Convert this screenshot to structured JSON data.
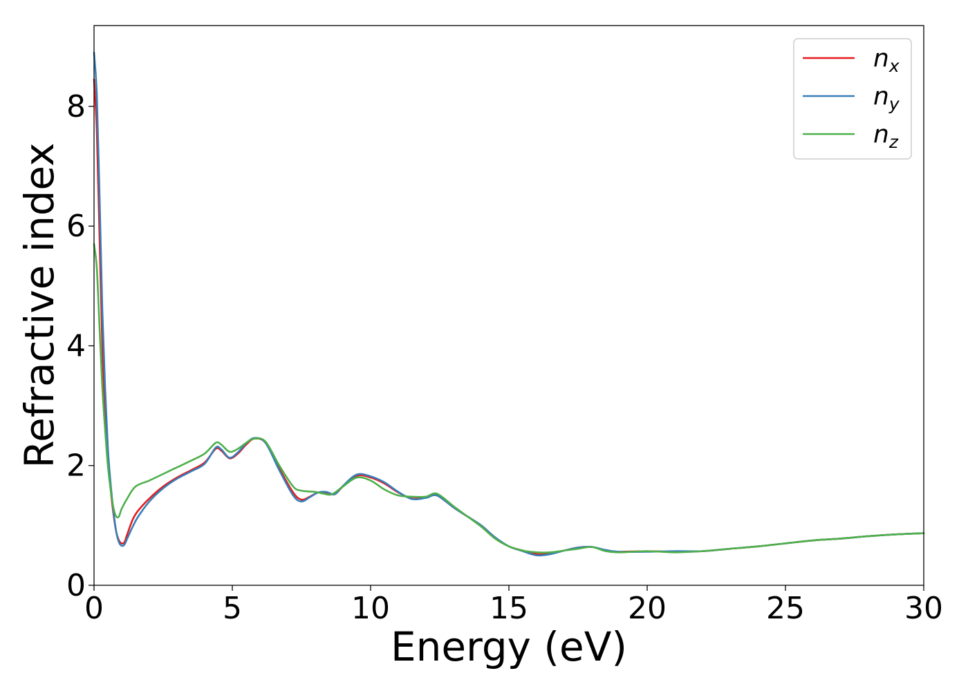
{
  "chart_data": {
    "type": "line",
    "title": "",
    "xlabel": "Energy (eV)",
    "ylabel": "Refractive index",
    "xlim": [
      0,
      30
    ],
    "ylim": [
      0,
      9.35
    ],
    "xticks": [
      0,
      5,
      10,
      15,
      20,
      25,
      30
    ],
    "yticks": [
      0,
      2,
      4,
      6,
      8
    ],
    "grid": false,
    "legend_position": "top-right",
    "series": [
      {
        "name": "n",
        "subscript": "x",
        "color": "#e41a1c",
        "points": [
          [
            0,
            8.45
          ],
          [
            0.1,
            7.6
          ],
          [
            0.2,
            5.8
          ],
          [
            0.3,
            4.0
          ],
          [
            0.4,
            2.9
          ],
          [
            0.5,
            2.1
          ],
          [
            0.6,
            1.6
          ],
          [
            0.7,
            1.2
          ],
          [
            0.8,
            0.9
          ],
          [
            0.9,
            0.75
          ],
          [
            1.0,
            0.7
          ],
          [
            1.1,
            0.72
          ],
          [
            1.2,
            0.85
          ],
          [
            1.4,
            1.1
          ],
          [
            1.6,
            1.25
          ],
          [
            2.0,
            1.45
          ],
          [
            2.5,
            1.65
          ],
          [
            3.0,
            1.8
          ],
          [
            3.5,
            1.92
          ],
          [
            4.0,
            2.05
          ],
          [
            4.4,
            2.28
          ],
          [
            4.6,
            2.25
          ],
          [
            4.9,
            2.12
          ],
          [
            5.2,
            2.2
          ],
          [
            5.5,
            2.35
          ],
          [
            5.8,
            2.45
          ],
          [
            6.2,
            2.38
          ],
          [
            6.7,
            1.95
          ],
          [
            7.2,
            1.55
          ],
          [
            7.5,
            1.43
          ],
          [
            7.8,
            1.48
          ],
          [
            8.1,
            1.55
          ],
          [
            8.4,
            1.55
          ],
          [
            8.7,
            1.52
          ],
          [
            9.0,
            1.65
          ],
          [
            9.5,
            1.83
          ],
          [
            10.0,
            1.8
          ],
          [
            10.5,
            1.7
          ],
          [
            11.0,
            1.55
          ],
          [
            11.5,
            1.45
          ],
          [
            12.0,
            1.47
          ],
          [
            12.4,
            1.5
          ],
          [
            13.0,
            1.3
          ],
          [
            13.5,
            1.15
          ],
          [
            14.0,
            1.0
          ],
          [
            14.5,
            0.8
          ],
          [
            15.0,
            0.65
          ],
          [
            15.5,
            0.58
          ],
          [
            16.0,
            0.52
          ],
          [
            16.5,
            0.53
          ],
          [
            17.0,
            0.58
          ],
          [
            17.5,
            0.63
          ],
          [
            18.0,
            0.64
          ],
          [
            18.5,
            0.58
          ],
          [
            19.0,
            0.56
          ],
          [
            20.0,
            0.57
          ],
          [
            21.0,
            0.56
          ],
          [
            22.0,
            0.57
          ],
          [
            23.0,
            0.61
          ],
          [
            24.0,
            0.65
          ],
          [
            25.0,
            0.7
          ],
          [
            26.0,
            0.75
          ],
          [
            27.0,
            0.78
          ],
          [
            28.0,
            0.82
          ],
          [
            29.0,
            0.85
          ],
          [
            30.0,
            0.87
          ]
        ]
      },
      {
        "name": "n",
        "subscript": "y",
        "color": "#377eb8",
        "points": [
          [
            0,
            8.9
          ],
          [
            0.1,
            8.2
          ],
          [
            0.2,
            6.5
          ],
          [
            0.3,
            4.6
          ],
          [
            0.4,
            3.3
          ],
          [
            0.5,
            2.3
          ],
          [
            0.6,
            1.7
          ],
          [
            0.7,
            1.25
          ],
          [
            0.8,
            0.9
          ],
          [
            0.9,
            0.72
          ],
          [
            1.0,
            0.66
          ],
          [
            1.1,
            0.68
          ],
          [
            1.2,
            0.78
          ],
          [
            1.4,
            0.98
          ],
          [
            1.6,
            1.15
          ],
          [
            2.0,
            1.4
          ],
          [
            2.5,
            1.62
          ],
          [
            3.0,
            1.78
          ],
          [
            3.5,
            1.9
          ],
          [
            4.0,
            2.03
          ],
          [
            4.4,
            2.3
          ],
          [
            4.6,
            2.27
          ],
          [
            4.9,
            2.13
          ],
          [
            5.2,
            2.22
          ],
          [
            5.5,
            2.37
          ],
          [
            5.8,
            2.46
          ],
          [
            6.2,
            2.38
          ],
          [
            6.7,
            1.92
          ],
          [
            7.2,
            1.5
          ],
          [
            7.5,
            1.4
          ],
          [
            7.8,
            1.47
          ],
          [
            8.1,
            1.55
          ],
          [
            8.4,
            1.56
          ],
          [
            8.7,
            1.52
          ],
          [
            9.0,
            1.66
          ],
          [
            9.5,
            1.85
          ],
          [
            10.0,
            1.82
          ],
          [
            10.5,
            1.72
          ],
          [
            11.0,
            1.56
          ],
          [
            11.5,
            1.44
          ],
          [
            12.0,
            1.46
          ],
          [
            12.4,
            1.5
          ],
          [
            13.0,
            1.3
          ],
          [
            13.5,
            1.15
          ],
          [
            14.0,
            1.0
          ],
          [
            14.5,
            0.8
          ],
          [
            15.0,
            0.65
          ],
          [
            15.5,
            0.57
          ],
          [
            16.0,
            0.5
          ],
          [
            16.5,
            0.52
          ],
          [
            17.0,
            0.58
          ],
          [
            17.5,
            0.63
          ],
          [
            18.0,
            0.64
          ],
          [
            18.5,
            0.59
          ],
          [
            19.0,
            0.56
          ],
          [
            20.0,
            0.56
          ],
          [
            21.0,
            0.57
          ],
          [
            22.0,
            0.57
          ],
          [
            23.0,
            0.61
          ],
          [
            24.0,
            0.65
          ],
          [
            25.0,
            0.7
          ],
          [
            26.0,
            0.75
          ],
          [
            27.0,
            0.78
          ],
          [
            28.0,
            0.82
          ],
          [
            29.0,
            0.85
          ],
          [
            30.0,
            0.87
          ]
        ]
      },
      {
        "name": "n",
        "subscript": "z",
        "color": "#4daf4a",
        "points": [
          [
            0,
            5.7
          ],
          [
            0.1,
            5.3
          ],
          [
            0.2,
            4.3
          ],
          [
            0.3,
            3.3
          ],
          [
            0.4,
            2.6
          ],
          [
            0.5,
            2.0
          ],
          [
            0.6,
            1.6
          ],
          [
            0.7,
            1.3
          ],
          [
            0.8,
            1.15
          ],
          [
            0.9,
            1.15
          ],
          [
            1.0,
            1.28
          ],
          [
            1.2,
            1.45
          ],
          [
            1.5,
            1.65
          ],
          [
            2.0,
            1.75
          ],
          [
            2.5,
            1.86
          ],
          [
            3.0,
            1.97
          ],
          [
            3.5,
            2.08
          ],
          [
            4.0,
            2.2
          ],
          [
            4.4,
            2.38
          ],
          [
            4.6,
            2.35
          ],
          [
            4.9,
            2.23
          ],
          [
            5.2,
            2.28
          ],
          [
            5.5,
            2.38
          ],
          [
            5.8,
            2.45
          ],
          [
            6.2,
            2.4
          ],
          [
            6.7,
            2.0
          ],
          [
            7.2,
            1.65
          ],
          [
            7.5,
            1.58
          ],
          [
            8.0,
            1.56
          ],
          [
            8.3,
            1.53
          ],
          [
            8.6,
            1.52
          ],
          [
            9.0,
            1.65
          ],
          [
            9.5,
            1.8
          ],
          [
            10.0,
            1.75
          ],
          [
            10.5,
            1.6
          ],
          [
            11.0,
            1.5
          ],
          [
            11.5,
            1.48
          ],
          [
            12.0,
            1.48
          ],
          [
            12.4,
            1.53
          ],
          [
            13.0,
            1.32
          ],
          [
            13.5,
            1.15
          ],
          [
            14.0,
            0.98
          ],
          [
            14.5,
            0.78
          ],
          [
            15.0,
            0.65
          ],
          [
            15.5,
            0.58
          ],
          [
            16.0,
            0.55
          ],
          [
            16.5,
            0.55
          ],
          [
            17.0,
            0.58
          ],
          [
            17.5,
            0.61
          ],
          [
            18.0,
            0.64
          ],
          [
            18.5,
            0.57
          ],
          [
            19.0,
            0.55
          ],
          [
            20.0,
            0.57
          ],
          [
            21.0,
            0.55
          ],
          [
            22.0,
            0.57
          ],
          [
            23.0,
            0.61
          ],
          [
            24.0,
            0.65
          ],
          [
            25.0,
            0.7
          ],
          [
            26.0,
            0.75
          ],
          [
            27.0,
            0.78
          ],
          [
            28.0,
            0.82
          ],
          [
            29.0,
            0.85
          ],
          [
            30.0,
            0.87
          ]
        ]
      }
    ]
  }
}
